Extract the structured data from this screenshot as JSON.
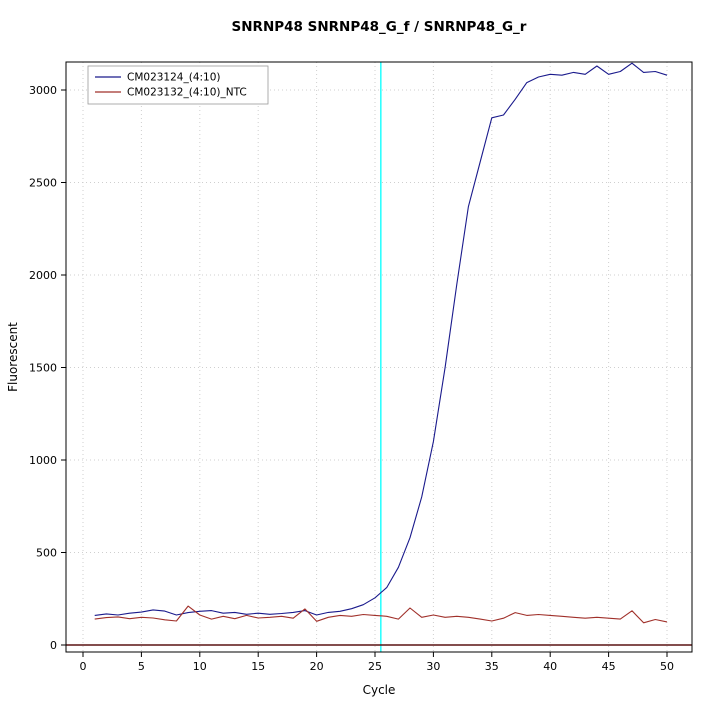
{
  "title": "SNRNP48  SNRNP48_G_f / SNRNP48_G_r",
  "chart_data": {
    "type": "line",
    "title": "SNRNP48  SNRNP48_G_f / SNRNP48_G_r",
    "xlabel": "Cycle",
    "ylabel": "Fluorescent",
    "xlim": [
      -1.5,
      52
    ],
    "ylim": [
      -30,
      3200
    ],
    "xticks": [
      0,
      5,
      10,
      15,
      20,
      25,
      30,
      35,
      40,
      45,
      50
    ],
    "yticks": [
      0,
      500,
      1000,
      1500,
      2000,
      2500,
      3000
    ],
    "grid": true,
    "legend_position": "top-left",
    "threshold_line": {
      "x": 25.5,
      "color": "#00ffff"
    },
    "zero_line": {
      "y": 0,
      "color": "#5a1414"
    },
    "x": [
      1,
      2,
      3,
      4,
      5,
      6,
      7,
      8,
      9,
      10,
      11,
      12,
      13,
      14,
      15,
      16,
      17,
      18,
      19,
      20,
      21,
      22,
      23,
      24,
      25,
      26,
      27,
      28,
      29,
      30,
      31,
      32,
      33,
      34,
      35,
      36,
      37,
      38,
      39,
      40,
      41,
      42,
      43,
      44,
      45,
      46,
      47,
      48,
      49,
      50
    ],
    "series": [
      {
        "name": "CM023124_(4:10)",
        "color": "#1a1a8c",
        "values": [
          160,
          168,
          162,
          172,
          178,
          190,
          183,
          162,
          175,
          182,
          186,
          172,
          176,
          166,
          172,
          166,
          170,
          176,
          186,
          162,
          176,
          182,
          196,
          218,
          255,
          310,
          420,
          580,
          800,
          1100,
          1500,
          1950,
          2370,
          2610,
          2850,
          2865,
          2950,
          3040,
          3070,
          3085,
          3080,
          3095,
          3085,
          3130,
          3085,
          3100,
          3145,
          3095,
          3100,
          3080
        ]
      },
      {
        "name": "CM023132_(4:10)_NTC",
        "color": "#a0302a",
        "values": [
          140,
          148,
          152,
          142,
          150,
          146,
          136,
          130,
          210,
          162,
          140,
          155,
          142,
          160,
          146,
          150,
          155,
          145,
          195,
          128,
          150,
          160,
          155,
          165,
          160,
          155,
          140,
          200,
          150,
          162,
          150,
          155,
          150,
          140,
          130,
          145,
          175,
          160,
          165,
          160,
          155,
          150,
          145,
          150,
          145,
          140,
          185,
          120,
          138,
          125
        ]
      }
    ],
    "legend": [
      "CM023124_(4:10)",
      "CM023132_(4:10)_NTC"
    ]
  }
}
